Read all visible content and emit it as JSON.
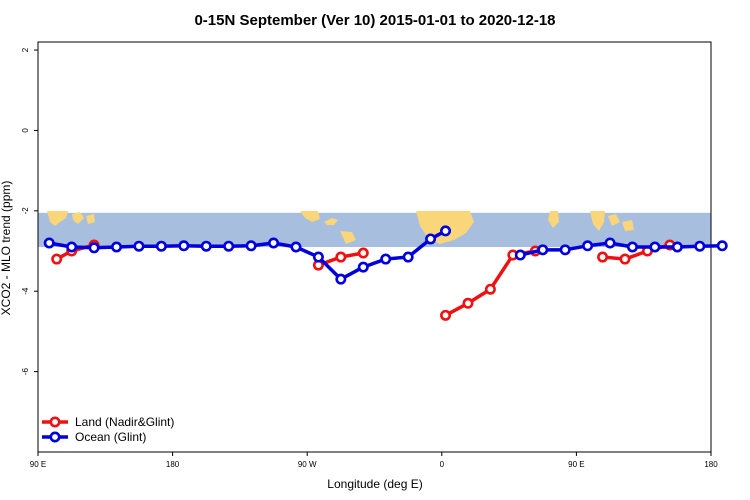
{
  "chart_data": {
    "type": "line",
    "title": "0-15N September (Ver 10)   2015-01-01 to 2020-12-18",
    "xlabel": "Longitude (deg E)",
    "ylabel": "XCO2 - MLO trend (ppm)",
    "xlim": [
      90,
      540
    ],
    "ylim": [
      -8,
      2.2
    ],
    "x_ticks": [
      {
        "value": 90,
        "label": "90 E"
      },
      {
        "value": 180,
        "label": "180"
      },
      {
        "value": 270,
        "label": "90 W"
      },
      {
        "value": 360,
        "label": "0"
      },
      {
        "value": 450,
        "label": "90 E"
      },
      {
        "value": 540,
        "label": "180"
      }
    ],
    "y_ticks": [
      {
        "value": 2,
        "label": "2"
      },
      {
        "value": 0,
        "label": "0"
      },
      {
        "value": -2,
        "label": "-2"
      },
      {
        "value": -4,
        "label": "-4"
      },
      {
        "value": -6,
        "label": "-6"
      }
    ],
    "map_band": {
      "lat_range": [
        0,
        15
      ],
      "y_range": [
        -2.9,
        -2.05
      ],
      "ocean_color": "#a7bedf",
      "land_color": "#f9d67a"
    },
    "legend_position": "bottom-left",
    "series": [
      {
        "name": "Land (Nadir&Glint)",
        "color": "#ee1111",
        "segments": [
          [
            [
              102.5,
              -3.2
            ],
            [
              112.5,
              -3.0
            ],
            [
              127.5,
              -2.85
            ]
          ],
          [
            [
              277.5,
              -3.35
            ],
            [
              292.5,
              -3.15
            ],
            [
              307.5,
              -3.05
            ]
          ],
          [
            [
              362.5,
              -4.6
            ],
            [
              377.5,
              -4.3
            ],
            [
              392.5,
              -3.95
            ],
            [
              407.5,
              -3.1
            ],
            [
              422.5,
              -3.0
            ]
          ],
          [
            [
              467.5,
              -3.15
            ],
            [
              482.5,
              -3.2
            ],
            [
              497.5,
              -3.0
            ],
            [
              512.5,
              -2.85
            ]
          ]
        ]
      },
      {
        "name": "Ocean (Glint)",
        "color": "#0000dd",
        "segments": [
          [
            [
              97.5,
              -2.8
            ],
            [
              112.5,
              -2.9
            ],
            [
              127.5,
              -2.92
            ],
            [
              142.5,
              -2.9
            ],
            [
              157.5,
              -2.88
            ],
            [
              172.5,
              -2.88
            ],
            [
              187.5,
              -2.87
            ],
            [
              202.5,
              -2.88
            ],
            [
              217.5,
              -2.88
            ],
            [
              232.5,
              -2.87
            ],
            [
              247.5,
              -2.8
            ],
            [
              262.5,
              -2.9
            ],
            [
              277.5,
              -3.15
            ],
            [
              292.5,
              -3.7
            ],
            [
              307.5,
              -3.4
            ],
            [
              322.5,
              -3.2
            ],
            [
              337.5,
              -3.15
            ],
            [
              352.5,
              -2.7
            ],
            [
              362.5,
              -2.5
            ]
          ],
          [
            [
              412.5,
              -3.1
            ],
            [
              427.5,
              -2.97
            ],
            [
              442.5,
              -2.97
            ],
            [
              457.5,
              -2.87
            ],
            [
              472.5,
              -2.8
            ],
            [
              487.5,
              -2.9
            ],
            [
              502.5,
              -2.9
            ],
            [
              517.5,
              -2.9
            ],
            [
              532.5,
              -2.88
            ],
            [
              547.5,
              -2.87
            ]
          ]
        ]
      }
    ]
  }
}
